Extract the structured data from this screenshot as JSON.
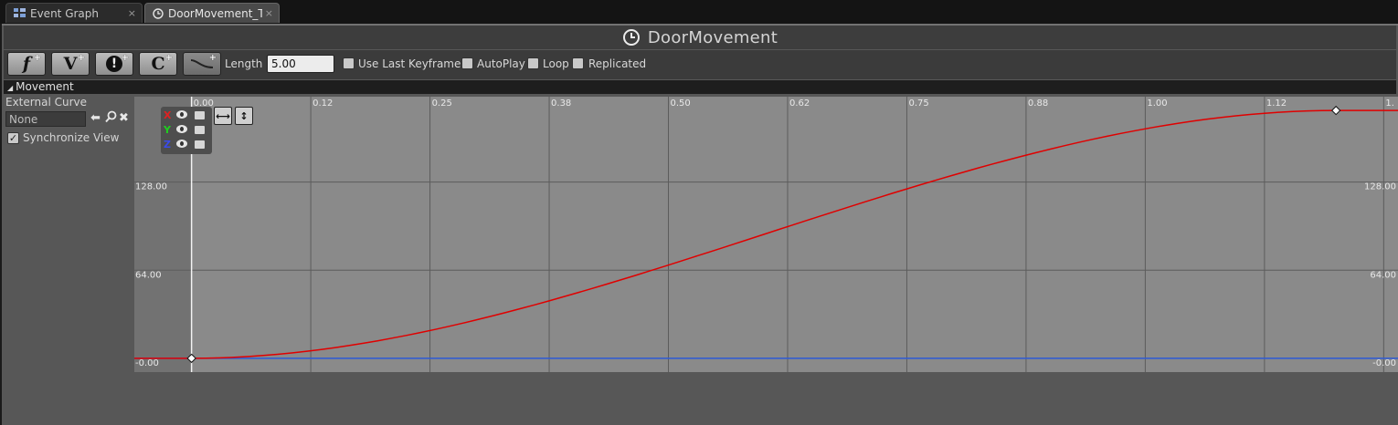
{
  "tabs": [
    {
      "label": "Event Graph",
      "icon": "graph-icon",
      "close": "×"
    },
    {
      "label": "DoorMovement_Ter",
      "icon": "timeline-clock-icon",
      "close": "×"
    }
  ],
  "title": {
    "icon": "clock-icon",
    "text": "DoorMovement"
  },
  "toolbar": {
    "buttons": [
      {
        "glyph": "f",
        "name": "add-float-track",
        "icon": "function-track-icon"
      },
      {
        "glyph": "V",
        "name": "add-vector-track",
        "icon": "vector-track-icon"
      },
      {
        "glyph": "!",
        "name": "add-event-track",
        "icon": "event-track-icon"
      },
      {
        "glyph": "C",
        "name": "add-color-track",
        "icon": "color-track-icon"
      },
      {
        "glyph": "",
        "name": "add-external-curve",
        "icon": "curve-track-icon"
      }
    ],
    "plus": "+",
    "length_label": "Length",
    "length_value": "5.00",
    "use_last_keyframe": {
      "label": "Use Last Keyframe?",
      "checked": false
    },
    "autoplay": {
      "label": "AutoPlay",
      "checked": false
    },
    "loop": {
      "label": "Loop",
      "checked": false
    },
    "replicated": {
      "label": "Replicated",
      "checked": false
    }
  },
  "track": {
    "name": "Movement",
    "external_curve_label": "External Curve",
    "external_curve_value": "None",
    "synchronize_view": {
      "label": "Synchronize View",
      "checked": true
    },
    "axes": [
      {
        "label": "X",
        "color": "#e02020"
      },
      {
        "label": "Y",
        "color": "#1fcf1f"
      },
      {
        "label": "Z",
        "color": "#3a4be8"
      }
    ]
  },
  "colors": {
    "curve_x": "#e00000",
    "curve_z": "#2f5bd8",
    "graph_bg": "#8a8a8a",
    "graph_bg_outside": "#727272"
  },
  "chart_data": {
    "type": "line",
    "x_ticks": [
      "0.00",
      "0.12",
      "0.25",
      "0.38",
      "0.50",
      "0.62",
      "0.75",
      "0.88",
      "1.00",
      "1.12",
      "1."
    ],
    "y_ticks": [
      "128.00",
      "64.00",
      "-0.00"
    ],
    "xlim": [
      -0.06,
      1.265
    ],
    "ylim": [
      -10,
      190
    ],
    "series": [
      {
        "axis": "X",
        "keys": [
          [
            0,
            0
          ],
          [
            1.2,
            180
          ]
        ],
        "interp": "cubic-auto"
      },
      {
        "axis": "Z",
        "constant": 0
      }
    ]
  }
}
